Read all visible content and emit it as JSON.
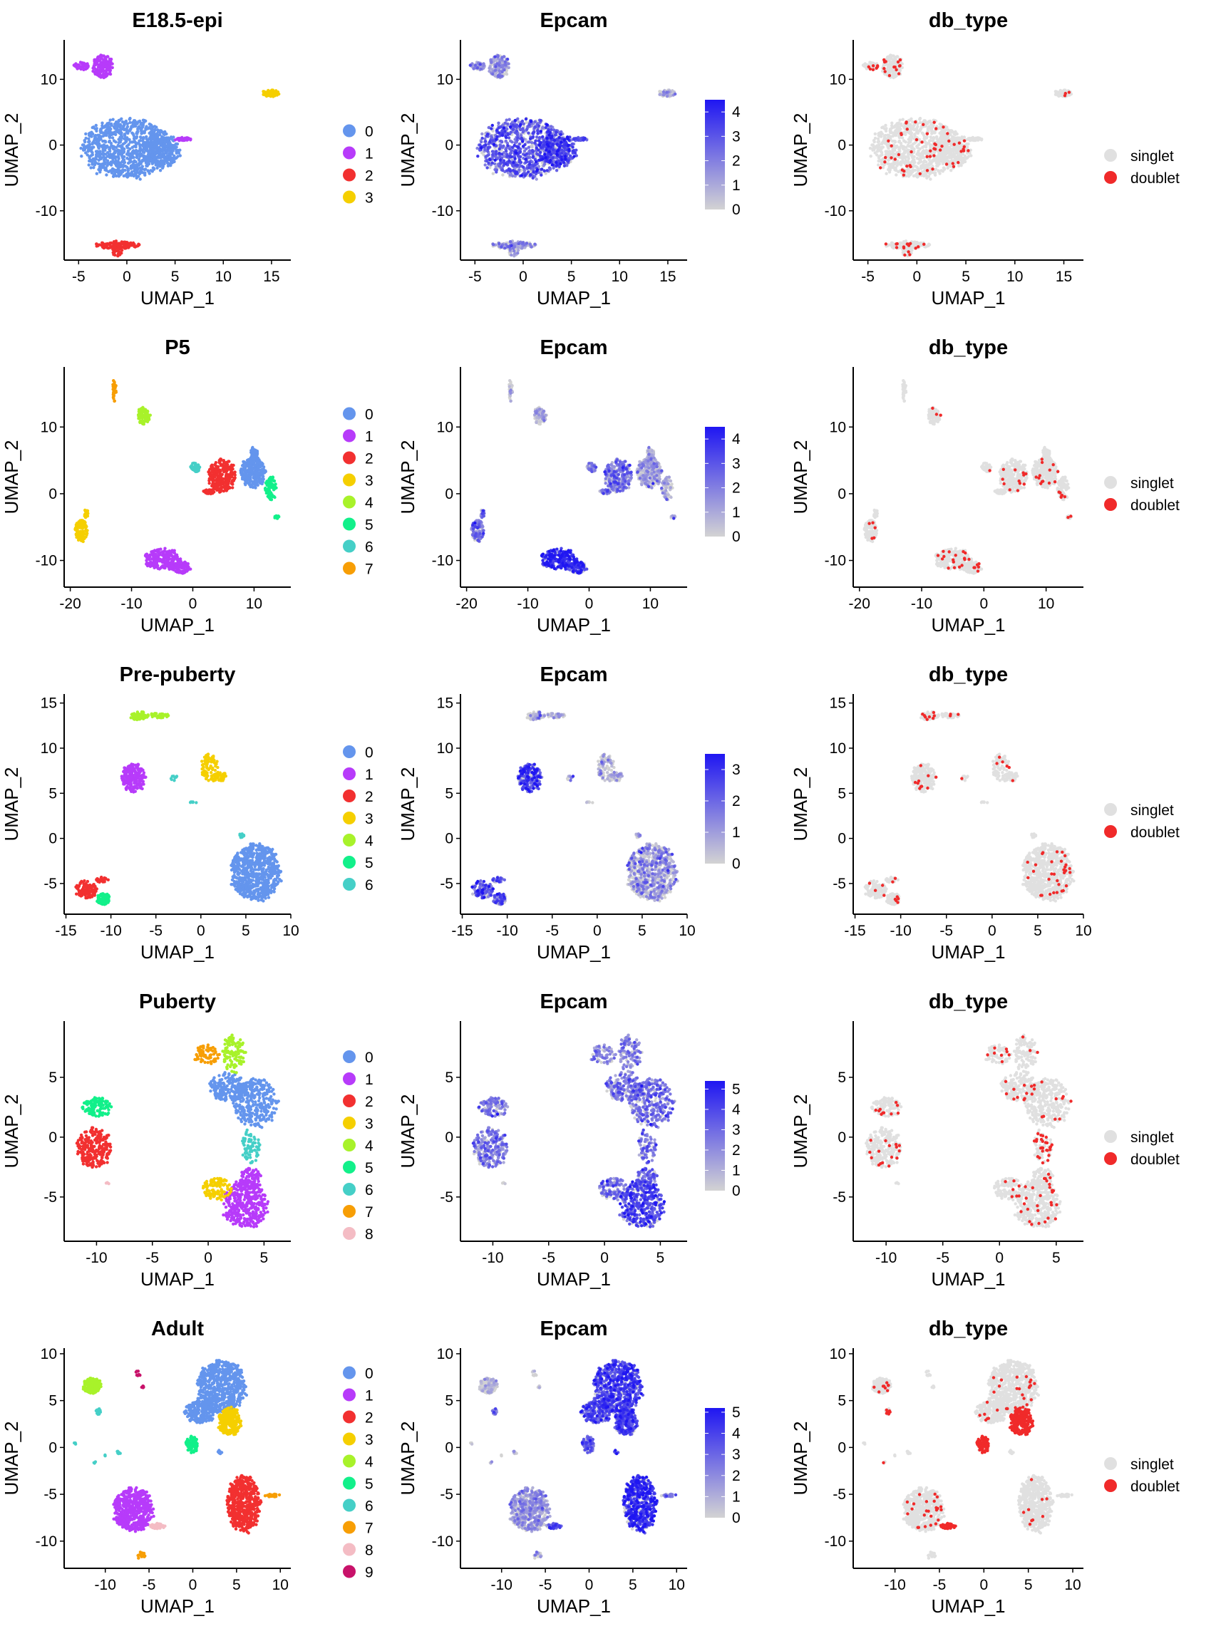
{
  "figure": {
    "x_axis_label": "UMAP_1",
    "y_axis_label": "UMAP_2",
    "cluster_palette": [
      "#6495ED",
      "#B73BFA",
      "#F23030",
      "#F5CF00",
      "#A8F22A",
      "#12F08A",
      "#45CFC7",
      "#F79E05",
      "#F4BCC4",
      "#C8126A"
    ],
    "expression_low_color": "#D3D3D3",
    "expression_high_color": "#1F16F2",
    "singlet_color": "#E0E0E0",
    "doublet_color": "#F02A2A"
  },
  "chart_data": [
    {
      "type": "scatter",
      "row": "E18.5-epi",
      "panels": {
        "cluster": {
          "title": "E18.5-epi",
          "legend": [
            "0",
            "1",
            "2",
            "3"
          ]
        },
        "epcam": {
          "title": "Epcam",
          "colorbar_ticks": [
            0,
            1,
            2,
            3,
            4
          ],
          "colorbar_max": 4.5
        },
        "db_type": {
          "title": "db_type",
          "legend": [
            "singlet",
            "doublet"
          ]
        }
      },
      "xlim": [
        -6.5,
        17
      ],
      "ylim": [
        -17.5,
        16
      ],
      "xticks": [
        -5,
        0,
        5,
        10,
        15
      ],
      "yticks": [
        -10,
        0,
        10
      ],
      "clusters": [
        {
          "id": 0,
          "cx": 0.0,
          "cy": -0.5,
          "rx": 4.6,
          "ry": 4.5,
          "n": 900,
          "expr": 2.6,
          "doublet_rate": 0.05
        },
        {
          "id": 0,
          "cx": 3.5,
          "cy": -0.8,
          "rx": 2.0,
          "ry": 2.5,
          "n": 260,
          "expr": 3.2,
          "doublet_rate": 0.03
        },
        {
          "id": 1,
          "cx": 5.9,
          "cy": 0.9,
          "rx": 0.9,
          "ry": 0.25,
          "n": 30,
          "expr": 2.8,
          "doublet_rate": 0.03
        },
        {
          "id": 1,
          "cx": -2.5,
          "cy": 12.0,
          "rx": 1.1,
          "ry": 1.7,
          "n": 160,
          "expr": 1.3,
          "doublet_rate": 0.06
        },
        {
          "id": 1,
          "cx": -4.7,
          "cy": 12.0,
          "rx": 0.8,
          "ry": 0.6,
          "n": 50,
          "expr": 1.2,
          "doublet_rate": 0.06
        },
        {
          "id": 2,
          "cx": -0.9,
          "cy": -15.2,
          "rx": 2.4,
          "ry": 0.6,
          "n": 120,
          "expr": 1.0,
          "doublet_rate": 0.1
        },
        {
          "id": 2,
          "cx": -1.0,
          "cy": -16.0,
          "rx": 0.5,
          "ry": 1.0,
          "n": 40,
          "expr": 1.0,
          "doublet_rate": 0.1
        },
        {
          "id": 3,
          "cx": 14.9,
          "cy": 7.9,
          "rx": 0.9,
          "ry": 0.5,
          "n": 60,
          "expr": 0.6,
          "doublet_rate": 0.05
        }
      ]
    },
    {
      "type": "scatter",
      "row": "P5",
      "panels": {
        "cluster": {
          "title": "P5",
          "legend": [
            "0",
            "1",
            "2",
            "3",
            "4",
            "5",
            "6",
            "7"
          ]
        },
        "epcam": {
          "title": "Epcam",
          "colorbar_ticks": [
            0,
            1,
            2,
            3,
            4
          ],
          "colorbar_max": 4.5
        },
        "db_type": {
          "title": "db_type",
          "legend": [
            "singlet",
            "doublet"
          ]
        }
      },
      "xlim": [
        -21,
        16
      ],
      "ylim": [
        -14,
        19
      ],
      "xticks": [
        -20,
        -10,
        0,
        10
      ],
      "yticks": [
        -10,
        0,
        10
      ],
      "clusters": [
        {
          "id": 0,
          "cx": 9.8,
          "cy": 3.2,
          "rx": 2.0,
          "ry": 2.3,
          "n": 260,
          "expr": 0.8,
          "doublet_rate": 0.04
        },
        {
          "id": 0,
          "cx": 10.0,
          "cy": 6.0,
          "rx": 0.6,
          "ry": 1.0,
          "n": 40,
          "expr": 0.8,
          "doublet_rate": 0.04
        },
        {
          "id": 1,
          "cx": -5.0,
          "cy": -9.8,
          "rx": 3.0,
          "ry": 1.6,
          "n": 220,
          "expr": 3.8,
          "doublet_rate": 0.05
        },
        {
          "id": 1,
          "cx": -1.8,
          "cy": -11.0,
          "rx": 1.4,
          "ry": 0.9,
          "n": 90,
          "expr": 3.5,
          "doublet_rate": 0.05
        },
        {
          "id": 2,
          "cx": 4.8,
          "cy": 2.7,
          "rx": 2.3,
          "ry": 2.5,
          "n": 260,
          "expr": 2.0,
          "doublet_rate": 0.05
        },
        {
          "id": 2,
          "cx": 2.8,
          "cy": 0.3,
          "rx": 1.1,
          "ry": 0.35,
          "n": 25,
          "expr": 2.0,
          "doublet_rate": 0.05
        },
        {
          "id": 3,
          "cx": -18.2,
          "cy": -5.5,
          "rx": 1.0,
          "ry": 1.6,
          "n": 120,
          "expr": 2.0,
          "doublet_rate": 0.04
        },
        {
          "id": 3,
          "cx": -17.4,
          "cy": -3.0,
          "rx": 0.3,
          "ry": 0.8,
          "n": 20,
          "expr": 2.0,
          "doublet_rate": 0.04
        },
        {
          "id": 4,
          "cx": -8.0,
          "cy": 11.7,
          "rx": 1.0,
          "ry": 1.3,
          "n": 90,
          "expr": 0.4,
          "doublet_rate": 0.04
        },
        {
          "id": 5,
          "cx": 12.7,
          "cy": 0.8,
          "rx": 0.9,
          "ry": 1.8,
          "n": 80,
          "expr": 0.5,
          "doublet_rate": 0.05
        },
        {
          "id": 5,
          "cx": 13.7,
          "cy": -3.5,
          "rx": 0.4,
          "ry": 0.25,
          "n": 10,
          "expr": 0.6,
          "doublet_rate": 0.05
        },
        {
          "id": 6,
          "cx": 0.3,
          "cy": 3.9,
          "rx": 0.8,
          "ry": 0.7,
          "n": 50,
          "expr": 1.2,
          "doublet_rate": 0.04
        },
        {
          "id": 7,
          "cx": -12.8,
          "cy": 15.5,
          "rx": 0.3,
          "ry": 1.8,
          "n": 30,
          "expr": 0.2,
          "doublet_rate": 0.05
        }
      ]
    },
    {
      "type": "scatter",
      "row": "Pre-puberty",
      "panels": {
        "cluster": {
          "title": "Pre-puberty",
          "legend": [
            "0",
            "1",
            "2",
            "3",
            "4",
            "5",
            "6"
          ]
        },
        "epcam": {
          "title": "Epcam",
          "colorbar_ticks": [
            0,
            1,
            2,
            3
          ],
          "colorbar_max": 3.5
        },
        "db_type": {
          "title": "db_type",
          "legend": [
            "singlet",
            "doublet"
          ]
        }
      },
      "xlim": [
        -15.2,
        10
      ],
      "ylim": [
        -8.4,
        16
      ],
      "xticks": [
        -15,
        -10,
        -5,
        0,
        5,
        10
      ],
      "yticks": [
        -5,
        0,
        5,
        10,
        15
      ],
      "clusters": [
        {
          "id": 0,
          "cx": 6.1,
          "cy": -3.7,
          "rx": 2.8,
          "ry": 3.1,
          "n": 700,
          "expr": 0.7,
          "doublet_rate": 0.04
        },
        {
          "id": 1,
          "cx": -7.5,
          "cy": 6.7,
          "rx": 1.3,
          "ry": 1.6,
          "n": 200,
          "expr": 2.5,
          "doublet_rate": 0.04
        },
        {
          "id": 2,
          "cx": -12.8,
          "cy": -5.7,
          "rx": 1.2,
          "ry": 1.0,
          "n": 110,
          "expr": 2.0,
          "doublet_rate": 0.05
        },
        {
          "id": 2,
          "cx": -11.2,
          "cy": -4.6,
          "rx": 0.9,
          "ry": 0.3,
          "n": 20,
          "expr": 2.0,
          "doublet_rate": 0.05
        },
        {
          "id": 3,
          "cx": 1.0,
          "cy": 7.9,
          "rx": 1.0,
          "ry": 1.6,
          "n": 90,
          "expr": 0.3,
          "doublet_rate": 0.05
        },
        {
          "id": 3,
          "cx": 2.2,
          "cy": 6.8,
          "rx": 0.7,
          "ry": 0.5,
          "n": 30,
          "expr": 0.3,
          "doublet_rate": 0.05
        },
        {
          "id": 4,
          "cx": -6.9,
          "cy": 13.6,
          "rx": 0.9,
          "ry": 0.5,
          "n": 60,
          "expr": 0.4,
          "doublet_rate": 0.06
        },
        {
          "id": 4,
          "cx": -4.8,
          "cy": 13.6,
          "rx": 1.5,
          "ry": 0.25,
          "n": 35,
          "expr": 0.4,
          "doublet_rate": 0.06
        },
        {
          "id": 5,
          "cx": -10.8,
          "cy": -6.7,
          "rx": 0.8,
          "ry": 0.6,
          "n": 70,
          "expr": 2.0,
          "doublet_rate": 0.04
        },
        {
          "id": 6,
          "cx": 4.5,
          "cy": 0.3,
          "rx": 0.3,
          "ry": 0.25,
          "n": 12,
          "expr": 1.0,
          "doublet_rate": 0.03
        },
        {
          "id": 6,
          "cx": -3.0,
          "cy": 6.7,
          "rx": 0.4,
          "ry": 0.3,
          "n": 8,
          "expr": 1.0,
          "doublet_rate": 0.03
        },
        {
          "id": 6,
          "cx": -0.8,
          "cy": 4.0,
          "rx": 0.4,
          "ry": 0.1,
          "n": 6,
          "expr": 0.4,
          "doublet_rate": 0.03
        }
      ]
    },
    {
      "type": "scatter",
      "row": "Puberty",
      "panels": {
        "cluster": {
          "title": "Puberty",
          "legend": [
            "0",
            "1",
            "2",
            "3",
            "4",
            "5",
            "6",
            "7",
            "8"
          ]
        },
        "epcam": {
          "title": "Epcam",
          "colorbar_ticks": [
            0,
            1,
            2,
            3,
            4,
            5
          ],
          "colorbar_max": 5.4
        },
        "db_type": {
          "title": "db_type",
          "legend": [
            "singlet",
            "doublet"
          ]
        }
      },
      "xlim": [
        -12.9,
        7.4
      ],
      "ylim": [
        -8.7,
        9.7
      ],
      "xticks": [
        -10,
        -5,
        0,
        5
      ],
      "yticks": [
        -5,
        0,
        5
      ],
      "clusters": [
        {
          "id": 0,
          "cx": 1.7,
          "cy": 4.2,
          "rx": 1.6,
          "ry": 1.2,
          "n": 180,
          "expr": 2.4,
          "doublet_rate": 0.07
        },
        {
          "id": 0,
          "cx": 4.2,
          "cy": 2.9,
          "rx": 2.0,
          "ry": 2.0,
          "n": 320,
          "expr": 2.8,
          "doublet_rate": 0.03
        },
        {
          "id": 1,
          "cx": 3.3,
          "cy": -5.6,
          "rx": 2.0,
          "ry": 2.0,
          "n": 380,
          "expr": 3.8,
          "doublet_rate": 0.05
        },
        {
          "id": 1,
          "cx": 3.8,
          "cy": -3.4,
          "rx": 1.0,
          "ry": 0.8,
          "n": 80,
          "expr": 3.0,
          "doublet_rate": 0.04
        },
        {
          "id": 2,
          "cx": -10.2,
          "cy": -0.9,
          "rx": 1.6,
          "ry": 1.7,
          "n": 250,
          "expr": 2.4,
          "doublet_rate": 0.06
        },
        {
          "id": 3,
          "cx": 0.8,
          "cy": -4.3,
          "rx": 1.3,
          "ry": 0.9,
          "n": 110,
          "expr": 2.8,
          "doublet_rate": 0.06
        },
        {
          "id": 4,
          "cx": 2.3,
          "cy": 7.0,
          "rx": 1.0,
          "ry": 1.6,
          "n": 110,
          "expr": 2.2,
          "doublet_rate": 0.04
        },
        {
          "id": 5,
          "cx": -10.0,
          "cy": 2.5,
          "rx": 1.3,
          "ry": 0.8,
          "n": 120,
          "expr": 2.2,
          "doublet_rate": 0.06
        },
        {
          "id": 6,
          "cx": 3.8,
          "cy": -0.8,
          "rx": 0.8,
          "ry": 1.5,
          "n": 80,
          "expr": 2.6,
          "doublet_rate": 0.35
        },
        {
          "id": 7,
          "cx": -0.2,
          "cy": 6.9,
          "rx": 1.2,
          "ry": 0.8,
          "n": 70,
          "expr": 2.0,
          "doublet_rate": 0.1
        },
        {
          "id": 8,
          "cx": -9.0,
          "cy": -3.9,
          "rx": 0.15,
          "ry": 0.15,
          "n": 4,
          "expr": 0.2,
          "doublet_rate": 0.0
        }
      ]
    },
    {
      "type": "scatter",
      "row": "Adult",
      "panels": {
        "cluster": {
          "title": "Adult",
          "legend": [
            "0",
            "1",
            "2",
            "3",
            "4",
            "5",
            "6",
            "7",
            "8",
            "9"
          ]
        },
        "epcam": {
          "title": "Epcam",
          "colorbar_ticks": [
            0,
            1,
            2,
            3,
            4,
            5
          ],
          "colorbar_max": 5.2
        },
        "db_type": {
          "title": "db_type",
          "legend": [
            "singlet",
            "doublet"
          ]
        }
      },
      "xlim": [
        -14.7,
        11.2
      ],
      "ylim": [
        -12.9,
        10.6
      ],
      "xticks": [
        -10,
        -5,
        0,
        5,
        10
      ],
      "yticks": [
        -10,
        -5,
        0,
        5,
        10
      ],
      "clusters": [
        {
          "id": 0,
          "cx": 3.3,
          "cy": 6.5,
          "rx": 2.8,
          "ry": 2.8,
          "n": 650,
          "expr": 3.8,
          "doublet_rate": 0.03
        },
        {
          "id": 0,
          "cx": 0.8,
          "cy": 3.8,
          "rx": 1.8,
          "ry": 1.2,
          "n": 200,
          "expr": 3.5,
          "doublet_rate": 0.02
        },
        {
          "id": 0,
          "cx": 3.1,
          "cy": -0.5,
          "rx": 0.25,
          "ry": 0.2,
          "n": 8,
          "expr": 3.5,
          "doublet_rate": 0.0
        },
        {
          "id": 1,
          "cx": -6.8,
          "cy": -6.6,
          "rx": 2.3,
          "ry": 2.3,
          "n": 500,
          "expr": 1.4,
          "doublet_rate": 0.04
        },
        {
          "id": 2,
          "cx": 5.8,
          "cy": -6.0,
          "rx": 1.9,
          "ry": 3.0,
          "n": 500,
          "expr": 4.4,
          "doublet_rate": 0.02
        },
        {
          "id": 3,
          "cx": 4.2,
          "cy": 2.8,
          "rx": 1.3,
          "ry": 1.5,
          "n": 250,
          "expr": 3.6,
          "doublet_rate": 0.85
        },
        {
          "id": 4,
          "cx": -11.5,
          "cy": 6.6,
          "rx": 1.1,
          "ry": 0.8,
          "n": 150,
          "expr": 0.3,
          "doublet_rate": 0.04
        },
        {
          "id": 5,
          "cx": -0.1,
          "cy": 0.3,
          "rx": 0.7,
          "ry": 0.9,
          "n": 80,
          "expr": 2.8,
          "doublet_rate": 0.9
        },
        {
          "id": 6,
          "cx": -10.8,
          "cy": 3.9,
          "rx": 0.3,
          "ry": 0.4,
          "n": 15,
          "expr": 2.5,
          "doublet_rate": 0.3
        },
        {
          "id": 6,
          "cx": -8.4,
          "cy": -0.5,
          "rx": 0.25,
          "ry": 0.3,
          "n": 6,
          "expr": 0.3,
          "doublet_rate": 0.0
        },
        {
          "id": 6,
          "cx": -10.0,
          "cy": -0.8,
          "rx": 0.15,
          "ry": 0.15,
          "n": 3,
          "expr": 0.3,
          "doublet_rate": 0.0
        },
        {
          "id": 6,
          "cx": -13.5,
          "cy": 0.4,
          "rx": 0.15,
          "ry": 0.15,
          "n": 3,
          "expr": 0.2,
          "doublet_rate": 0.0
        },
        {
          "id": 6,
          "cx": -11.2,
          "cy": -1.6,
          "rx": 0.15,
          "ry": 0.15,
          "n": 3,
          "expr": 0.5,
          "doublet_rate": 0.3
        },
        {
          "id": 7,
          "cx": 9.1,
          "cy": -5.1,
          "rx": 0.9,
          "ry": 0.2,
          "n": 20,
          "expr": 2.5,
          "doublet_rate": 0.05
        },
        {
          "id": 7,
          "cx": -5.9,
          "cy": -11.5,
          "rx": 0.5,
          "ry": 0.4,
          "n": 14,
          "expr": 1.5,
          "doublet_rate": 0.1
        },
        {
          "id": 8,
          "cx": -4.0,
          "cy": -8.4,
          "rx": 0.9,
          "ry": 0.3,
          "n": 40,
          "expr": 3.0,
          "doublet_rate": 0.9
        },
        {
          "id": 9,
          "cx": -6.2,
          "cy": 7.9,
          "rx": 0.4,
          "ry": 0.3,
          "n": 10,
          "expr": 0.2,
          "doublet_rate": 0.0
        },
        {
          "id": 9,
          "cx": -5.7,
          "cy": 6.4,
          "rx": 0.15,
          "ry": 0.2,
          "n": 5,
          "expr": 0.2,
          "doublet_rate": 0.0
        }
      ]
    }
  ]
}
